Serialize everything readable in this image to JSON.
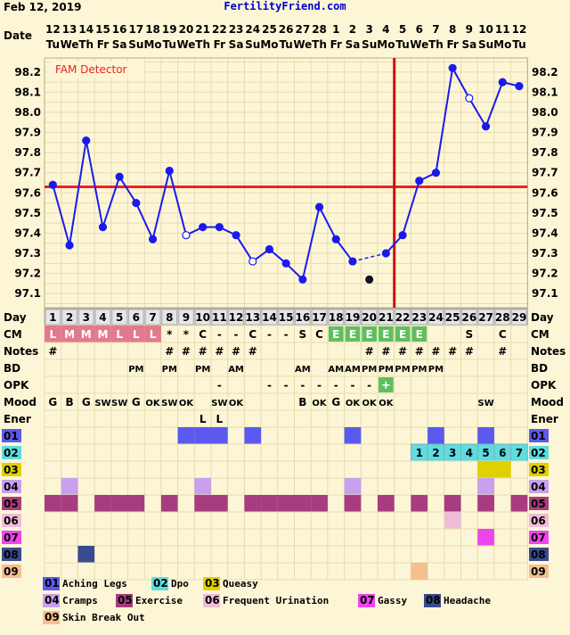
{
  "header": {
    "date_text": "Feb 12, 2019",
    "site": "FertilityFriend.com",
    "row_label": "Date"
  },
  "detector_label": "FAM Detector",
  "colors": {
    "background": "#fdf6d6",
    "grid": "#e6dcb0",
    "temp_line": "#1a1aee",
    "coverline": "#ee2222",
    "ovulation": "#cc1111",
    "cm_mark": "#e27a8c",
    "cm_fertile": "#5fbf5f",
    "opk_positive": "#5fbf5f"
  },
  "chart_data": {
    "type": "line",
    "title": "",
    "day_dates": [
      "12",
      "13",
      "14",
      "15",
      "16",
      "17",
      "18",
      "19",
      "20",
      "21",
      "22",
      "23",
      "24",
      "25",
      "26",
      "27",
      "28",
      "1",
      "2",
      "3",
      "4",
      "5",
      "6",
      "7",
      "8",
      "9",
      "10",
      "11",
      "12"
    ],
    "weekdays": [
      "Tu",
      "We",
      "Th",
      "Fr",
      "Sa",
      "Su",
      "Mo",
      "Tu",
      "We",
      "Th",
      "Fr",
      "Sa",
      "Su",
      "Mo",
      "Tu",
      "We",
      "Th",
      "Fr",
      "Sa",
      "Su",
      "Mo",
      "Tu",
      "We",
      "Th",
      "Fr",
      "Sa",
      "Su",
      "Mo",
      "Tu"
    ],
    "cycle_days": [
      1,
      2,
      3,
      4,
      5,
      6,
      7,
      8,
      9,
      10,
      11,
      12,
      13,
      14,
      15,
      16,
      17,
      18,
      19,
      20,
      21,
      22,
      23,
      24,
      25,
      26,
      27,
      28,
      29
    ],
    "y_ticks": [
      "98.2",
      "98.1",
      "98.0",
      "97.9",
      "97.8",
      "97.7",
      "97.6",
      "97.5",
      "97.4",
      "97.3",
      "97.2",
      "97.1"
    ],
    "ylim": [
      97.03,
      98.27
    ],
    "temperatures": [
      97.64,
      97.34,
      97.86,
      97.43,
      97.68,
      97.55,
      97.37,
      97.71,
      97.39,
      97.43,
      97.43,
      97.39,
      97.26,
      97.32,
      97.25,
      97.17,
      97.53,
      97.37,
      97.26,
      null,
      97.3,
      97.39,
      97.66,
      97.7,
      98.22,
      98.07,
      97.93,
      98.15,
      98.13
    ],
    "open_points": [
      9,
      13,
      26
    ],
    "discarded": {
      "day": 20,
      "value": 97.17
    },
    "dashed_gap": [
      19,
      21
    ],
    "coverline": 97.63,
    "ovulation_after_day": 21
  },
  "rows": {
    "day": {
      "label": "Day"
    },
    "cm": {
      "label": "CM",
      "values": [
        "L",
        "M",
        "M",
        "M",
        "L",
        "L",
        "L",
        "*",
        "*",
        "C",
        "-",
        "-",
        "C",
        "-",
        "-",
        "S",
        "C",
        "E",
        "E",
        "E",
        "E",
        "E",
        "E",
        "",
        "",
        "S",
        "",
        "C",
        ""
      ],
      "types": [
        "m",
        "m",
        "m",
        "m",
        "m",
        "m",
        "m",
        "",
        "",
        "",
        "",
        "",
        "",
        "",
        "",
        "",
        "",
        "f",
        "f",
        "f",
        "f",
        "f",
        "f",
        "",
        "",
        "",
        "",
        "",
        ""
      ]
    },
    "notes": {
      "label": "Notes",
      "values": [
        "#",
        "",
        "",
        "",
        "",
        "",
        "",
        "#",
        "#",
        "#",
        "#",
        "#",
        "#",
        "",
        "",
        "",
        "",
        "",
        "",
        "#",
        "#",
        "#",
        "#",
        "#",
        "#",
        "#",
        "",
        "#",
        ""
      ]
    },
    "bd": {
      "label": "BD",
      "values": [
        "",
        "",
        "",
        "",
        "",
        "PM",
        "",
        "PM",
        "",
        "PM",
        "",
        "AM",
        "",
        "",
        "",
        "AM",
        "",
        "AM",
        "AM",
        "PM",
        "PM",
        "PM",
        "PM",
        "PM",
        "",
        "",
        "",
        "",
        ""
      ]
    },
    "opk": {
      "label": "OPK",
      "values": [
        "",
        "",
        "",
        "",
        "",
        "",
        "",
        "",
        "",
        "",
        "-",
        "",
        "",
        "-",
        "-",
        "-",
        "-",
        "-",
        "-",
        "-",
        "+",
        "",
        "",
        "",
        "",
        "",
        "",
        "",
        ""
      ]
    },
    "mood": {
      "label": "Mood",
      "values": [
        "G",
        "B",
        "G",
        "SW",
        "SW",
        "G",
        "OK",
        "SW",
        "OK",
        "",
        "SW",
        "OK",
        "",
        "",
        "",
        "B",
        "OK",
        "G",
        "OK",
        "OK",
        "OK",
        "",
        "",
        "",
        "",
        "",
        "SW",
        "",
        ""
      ]
    },
    "energy": {
      "label": "Ener",
      "values": [
        "",
        "",
        "",
        "",
        "",
        "",
        "",
        "",
        "",
        "L",
        "L",
        "",
        "",
        "",
        "",
        "",
        "",
        "",
        "",
        "",
        "",
        "",
        "",
        "",
        "",
        "",
        "",
        "",
        ""
      ]
    }
  },
  "symptom_rows": [
    {
      "code": "01",
      "color": "#5a5aee",
      "days": [
        9,
        10,
        11,
        13,
        19,
        24,
        27
      ]
    },
    {
      "code": "02",
      "color": "#5ddde0",
      "dpo_days": [
        23,
        24,
        25,
        26,
        27,
        28,
        29
      ],
      "dpo_labels": [
        "1",
        "2",
        "3",
        "4",
        "5",
        "6",
        "7"
      ]
    },
    {
      "code": "03",
      "color": "#e0d000",
      "days": [
        27,
        28
      ]
    },
    {
      "code": "04",
      "color": "#c8a0ee",
      "days": [
        2,
        10,
        19,
        27
      ]
    },
    {
      "code": "05",
      "color": "#a83c80",
      "days": [
        1,
        2,
        4,
        5,
        6,
        8,
        10,
        11,
        13,
        14,
        15,
        16,
        17,
        19,
        21,
        23,
        25,
        27,
        29
      ]
    },
    {
      "code": "06",
      "color": "#f0bcd8",
      "days": [
        25
      ]
    },
    {
      "code": "07",
      "color": "#ee44ee",
      "days": [
        27
      ]
    },
    {
      "code": "08",
      "color": "#3a4a90",
      "days": [
        3
      ]
    },
    {
      "code": "09",
      "color": "#f5bf90",
      "days": [
        23
      ]
    }
  ],
  "legend": [
    {
      "code": "01",
      "label": "Aching Legs",
      "color": "#5a5aee"
    },
    {
      "code": "02",
      "label": "Dpo",
      "color": "#5ddde0"
    },
    {
      "code": "03",
      "label": "Queasy",
      "color": "#e0d000"
    },
    {
      "code": "04",
      "label": "Cramps",
      "color": "#c8a0ee"
    },
    {
      "code": "05",
      "label": "Exercise",
      "color": "#a83c80"
    },
    {
      "code": "06",
      "label": "Frequent Urination",
      "color": "#f0bcd8"
    },
    {
      "code": "07",
      "label": "Gassy",
      "color": "#ee44ee"
    },
    {
      "code": "08",
      "label": "Headache",
      "color": "#3a4a90"
    },
    {
      "code": "09",
      "label": "Skin Break Out",
      "color": "#f5bf90"
    }
  ]
}
